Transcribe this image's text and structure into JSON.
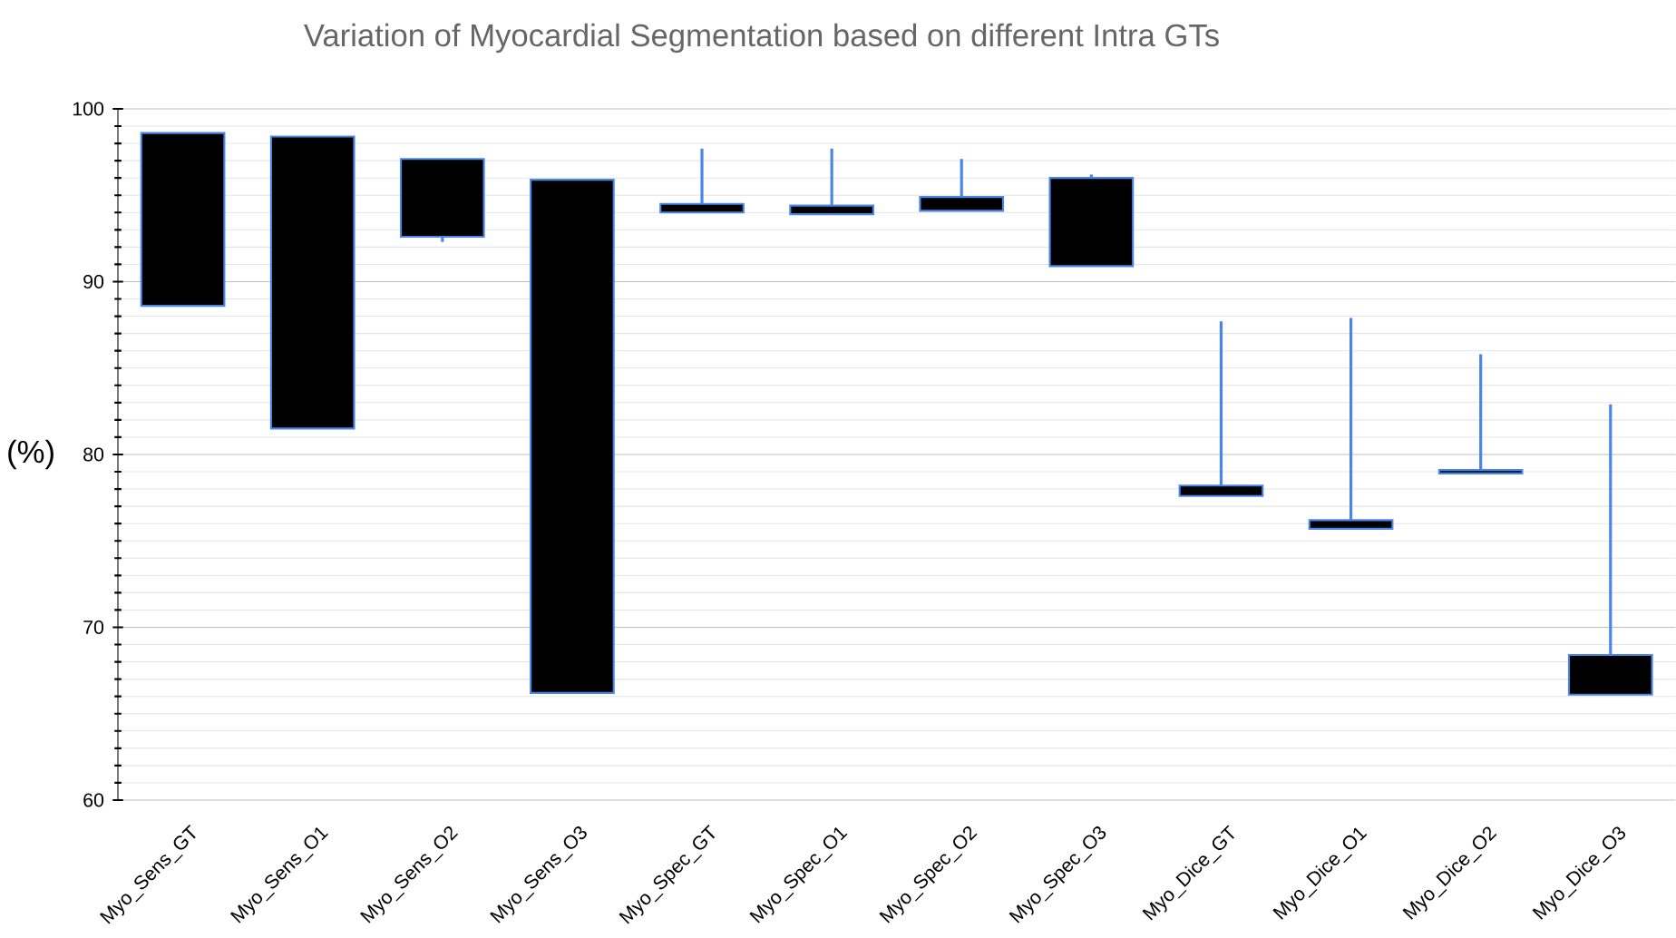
{
  "chart_data": {
    "type": "candlestick",
    "title": "Variation of Myocardial Segmentation based on different Intra GTs",
    "ylabel": "(%)",
    "categories": [
      "Myo_Sens_GT",
      "Myo_Sens_O1",
      "Myo_Sens_O2",
      "Myo_Sens_O3",
      "Myo_Spec_GT",
      "Myo_Spec_O1",
      "Myo_Spec_O2",
      "Myo_Spec_O3",
      "Myo_Dice_GT",
      "Myo_Dice_O1",
      "Myo_Dice_O2",
      "Myo_Dice_O3"
    ],
    "ohlc": [
      [
        98.6,
        98.6,
        88.6,
        88.6
      ],
      [
        98.4,
        98.4,
        81.5,
        81.5
      ],
      [
        97.1,
        97.1,
        92.3,
        92.6
      ],
      [
        95.9,
        95.9,
        66.2,
        66.2
      ],
      [
        94.5,
        97.7,
        94.0,
        94.0
      ],
      [
        94.4,
        97.7,
        93.9,
        93.9
      ],
      [
        94.9,
        97.1,
        94.1,
        94.1
      ],
      [
        96.0,
        96.2,
        90.9,
        90.9
      ],
      [
        78.2,
        87.7,
        77.6,
        77.6
      ],
      [
        76.2,
        87.9,
        75.7,
        75.7
      ],
      [
        79.1,
        85.8,
        78.9,
        78.9
      ],
      [
        68.4,
        82.9,
        66.1,
        66.1
      ]
    ],
    "color": "#000000",
    "ylim": [
      60,
      100
    ],
    "yticks": [
      60,
      70,
      80,
      90,
      100
    ],
    "grid": true
  }
}
